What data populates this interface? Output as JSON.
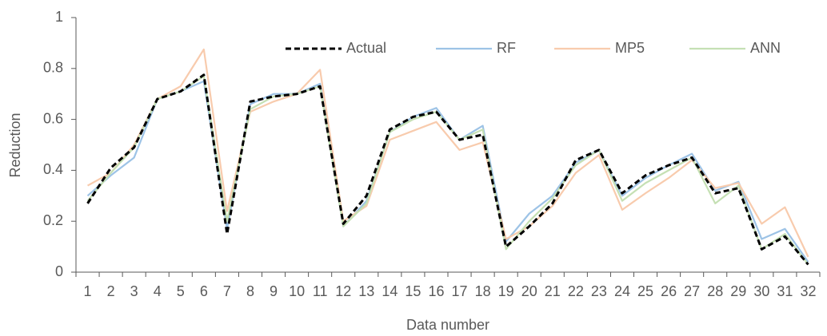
{
  "chart_data": {
    "type": "line",
    "x_label": "Data number",
    "y_label": "Reduction",
    "categories": [
      "1",
      "2",
      "3",
      "4",
      "5",
      "6",
      "7",
      "8",
      "9",
      "10",
      "11",
      "12",
      "13",
      "14",
      "15",
      "16",
      "17",
      "18",
      "19",
      "20",
      "21",
      "22",
      "23",
      "24",
      "25",
      "26",
      "27",
      "28",
      "29",
      "30",
      "31",
      "32"
    ],
    "ylim": [
      0,
      1
    ],
    "yticks": [
      0,
      0.2,
      0.4,
      0.6,
      0.8,
      1
    ],
    "grid": false,
    "legend": "top",
    "series": [
      {
        "name": "Actual",
        "color": "#000000",
        "line_style": "dashed",
        "values": [
          0.27,
          0.41,
          0.49,
          0.68,
          0.71,
          0.775,
          0.15,
          0.67,
          0.69,
          0.7,
          0.73,
          0.19,
          0.3,
          0.56,
          0.61,
          0.63,
          0.52,
          0.54,
          0.1,
          0.18,
          0.27,
          0.44,
          0.48,
          0.31,
          0.38,
          0.42,
          0.45,
          0.31,
          0.33,
          0.09,
          0.14,
          0.03
        ]
      },
      {
        "name": "RF",
        "color": "#9dc3e6",
        "line_style": "solid",
        "values": [
          0.3,
          0.38,
          0.45,
          0.68,
          0.71,
          0.75,
          0.17,
          0.66,
          0.7,
          0.7,
          0.74,
          0.18,
          0.28,
          0.55,
          0.61,
          0.645,
          0.52,
          0.575,
          0.12,
          0.23,
          0.3,
          0.43,
          0.48,
          0.3,
          0.37,
          0.42,
          0.465,
          0.32,
          0.355,
          0.13,
          0.17,
          0.04
        ]
      },
      {
        "name": "MP5",
        "color": "#f8cbad",
        "line_style": "solid",
        "values": [
          0.34,
          0.39,
          0.5,
          0.68,
          0.73,
          0.875,
          0.24,
          0.63,
          0.67,
          0.7,
          0.795,
          0.2,
          0.26,
          0.52,
          0.555,
          0.59,
          0.48,
          0.51,
          0.13,
          0.18,
          0.26,
          0.39,
          0.46,
          0.245,
          0.31,
          0.37,
          0.44,
          0.33,
          0.35,
          0.19,
          0.255,
          0.06
        ]
      },
      {
        "name": "ANN",
        "color": "#c5e0b4",
        "line_style": "solid",
        "values": [
          0.28,
          0.39,
          0.49,
          0.68,
          0.71,
          0.77,
          0.2,
          0.64,
          0.69,
          0.7,
          0.73,
          0.18,
          0.27,
          0.55,
          0.6,
          0.63,
          0.52,
          0.56,
          0.09,
          0.2,
          0.29,
          0.42,
          0.48,
          0.28,
          0.35,
          0.4,
          0.45,
          0.27,
          0.34,
          0.09,
          0.15,
          0.03
        ]
      }
    ]
  }
}
